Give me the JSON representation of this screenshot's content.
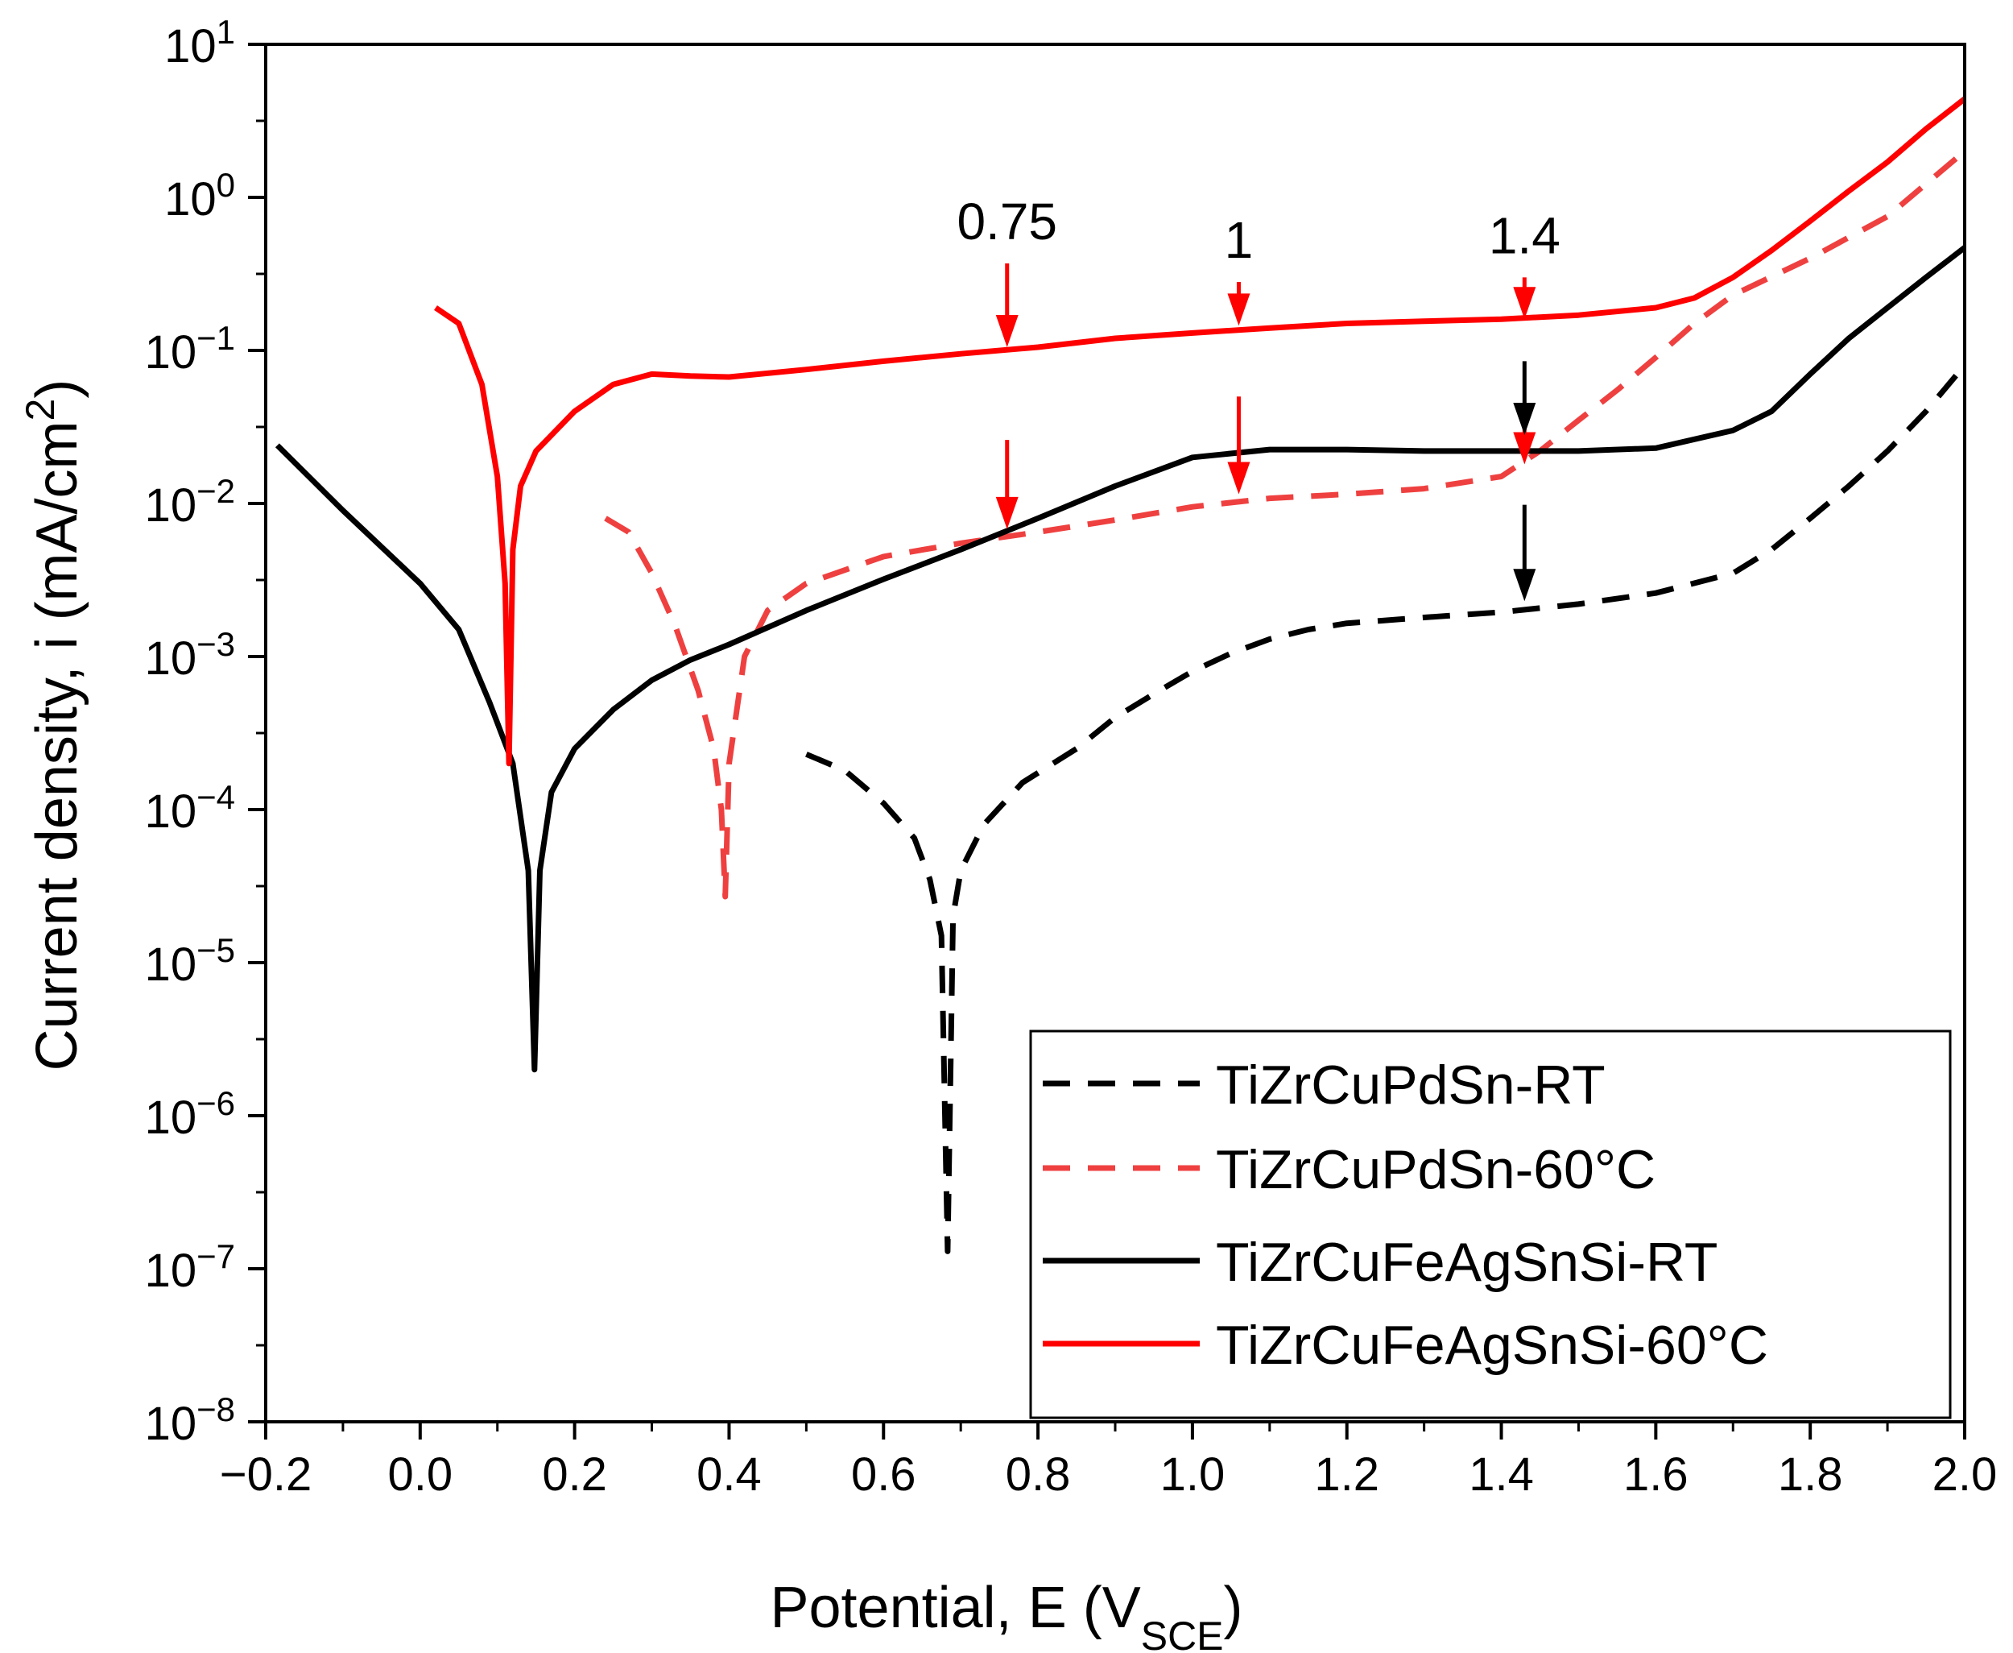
{
  "chart_data": {
    "type": "line",
    "title": "",
    "xlabel": "Potential, E (V",
    "xlabel_sub": "SCE",
    "xlabel_end": ")",
    "ylabel": "Current density, i (mA/cm",
    "ylabel_sup": "2",
    "ylabel_end": ")",
    "xlim": [
      -0.2,
      2.0
    ],
    "ylim_log10": [
      -8,
      1
    ],
    "yscale": "log",
    "x_ticks": [
      {
        "value": -0.2,
        "label": "−0.2"
      },
      {
        "value": 0.0,
        "label": "0.0"
      },
      {
        "value": 0.2,
        "label": "0.2"
      },
      {
        "value": 0.4,
        "label": "0.4"
      },
      {
        "value": 0.6,
        "label": "0.6"
      },
      {
        "value": 0.8,
        "label": "0.8"
      },
      {
        "value": 1.0,
        "label": "1.0"
      },
      {
        "value": 1.2,
        "label": "1.2"
      },
      {
        "value": 1.4,
        "label": "1.4"
      },
      {
        "value": 1.6,
        "label": "1.6"
      },
      {
        "value": 1.8,
        "label": "1.8"
      },
      {
        "value": 2.0,
        "label": "2.0"
      }
    ],
    "y_ticks": [
      {
        "exp": 1,
        "base": "10",
        "sup": "1"
      },
      {
        "exp": 0,
        "base": "10",
        "sup": "0"
      },
      {
        "exp": -1,
        "base": "10",
        "sup": "−1"
      },
      {
        "exp": -2,
        "base": "10",
        "sup": "−2"
      },
      {
        "exp": -3,
        "base": "10",
        "sup": "−3"
      },
      {
        "exp": -4,
        "base": "10",
        "sup": "−4"
      },
      {
        "exp": -5,
        "base": "10",
        "sup": "−5"
      },
      {
        "exp": -6,
        "base": "10",
        "sup": "−6"
      },
      {
        "exp": -7,
        "base": "10",
        "sup": "−7"
      },
      {
        "exp": -8,
        "base": "10",
        "sup": "−8"
      }
    ],
    "grid": false,
    "legend_position": "bottom-right",
    "series": [
      {
        "name": "TiZrCuPdSn-RT",
        "color": "#000000",
        "style": "dashed",
        "points": [
          [
            0.5,
            0.00023
          ],
          [
            0.55,
            0.00018
          ],
          [
            0.6,
            0.00011
          ],
          [
            0.64,
            6.5e-05
          ],
          [
            0.66,
            3.5e-05
          ],
          [
            0.675,
            1.5e-05
          ],
          [
            0.683,
            1.3e-07
          ],
          [
            0.69,
            2e-05
          ],
          [
            0.7,
            4e-05
          ],
          [
            0.73,
            8e-05
          ],
          [
            0.78,
            0.00015
          ],
          [
            0.85,
            0.00025
          ],
          [
            0.9,
            0.0004
          ],
          [
            0.95,
            0.00057
          ],
          [
            1.0,
            0.0008
          ],
          [
            1.05,
            0.00105
          ],
          [
            1.1,
            0.0013
          ],
          [
            1.15,
            0.0015
          ],
          [
            1.2,
            0.00165
          ],
          [
            1.3,
            0.0018
          ],
          [
            1.4,
            0.00195
          ],
          [
            1.5,
            0.0022
          ],
          [
            1.6,
            0.0026
          ],
          [
            1.7,
            0.0035
          ],
          [
            1.75,
            0.005
          ],
          [
            1.8,
            0.008
          ],
          [
            1.85,
            0.013
          ],
          [
            1.9,
            0.022
          ],
          [
            1.95,
            0.04
          ],
          [
            2.0,
            0.08
          ]
        ]
      },
      {
        "name": "TiZrCuPdSn-60°C",
        "color": "#ef4040",
        "style": "dashed",
        "points": [
          [
            0.24,
            0.008
          ],
          [
            0.27,
            0.0065
          ],
          [
            0.3,
            0.0035
          ],
          [
            0.33,
            0.0016
          ],
          [
            0.36,
            0.0006
          ],
          [
            0.38,
            0.00025
          ],
          [
            0.39,
            0.0001
          ],
          [
            0.395,
            2.7e-05
          ],
          [
            0.4,
            0.0002
          ],
          [
            0.42,
            0.001
          ],
          [
            0.45,
            0.002
          ],
          [
            0.5,
            0.003
          ],
          [
            0.6,
            0.0045
          ],
          [
            0.7,
            0.0055
          ],
          [
            0.8,
            0.0065
          ],
          [
            0.9,
            0.0078
          ],
          [
            1.0,
            0.0095
          ],
          [
            1.1,
            0.0108
          ],
          [
            1.2,
            0.0115
          ],
          [
            1.3,
            0.0125
          ],
          [
            1.4,
            0.015
          ],
          [
            1.45,
            0.022
          ],
          [
            1.5,
            0.035
          ],
          [
            1.55,
            0.055
          ],
          [
            1.6,
            0.09
          ],
          [
            1.65,
            0.15
          ],
          [
            1.7,
            0.23
          ],
          [
            1.8,
            0.4
          ],
          [
            1.9,
            0.75
          ],
          [
            2.0,
            2.0
          ]
        ]
      },
      {
        "name": "TiZrCuFeAgSnSi-RT",
        "color": "#000000",
        "style": "solid",
        "points": [
          [
            -0.185,
            0.024
          ],
          [
            -0.1,
            0.009
          ],
          [
            0.0,
            0.003
          ],
          [
            0.05,
            0.0015
          ],
          [
            0.09,
            0.0005
          ],
          [
            0.12,
            0.0002
          ],
          [
            0.14,
            4e-05
          ],
          [
            0.148,
            2e-06
          ],
          [
            0.155,
            4e-05
          ],
          [
            0.17,
            0.00013
          ],
          [
            0.2,
            0.00025
          ],
          [
            0.25,
            0.00045
          ],
          [
            0.3,
            0.0007
          ],
          [
            0.35,
            0.00095
          ],
          [
            0.4,
            0.0012
          ],
          [
            0.5,
            0.002
          ],
          [
            0.6,
            0.0032
          ],
          [
            0.7,
            0.005
          ],
          [
            0.8,
            0.008
          ],
          [
            0.9,
            0.013
          ],
          [
            1.0,
            0.02
          ],
          [
            1.1,
            0.0225
          ],
          [
            1.2,
            0.0225
          ],
          [
            1.3,
            0.022
          ],
          [
            1.4,
            0.022
          ],
          [
            1.5,
            0.022
          ],
          [
            1.6,
            0.023
          ],
          [
            1.7,
            0.03
          ],
          [
            1.75,
            0.04
          ],
          [
            1.8,
            0.07
          ],
          [
            1.85,
            0.12
          ],
          [
            1.9,
            0.19
          ],
          [
            1.95,
            0.3
          ],
          [
            2.0,
            0.47
          ]
        ]
      },
      {
        "name": "TiZrCuFeAgSnSi-60°C",
        "color": "#ff0000",
        "style": "solid",
        "points": [
          [
            0.02,
            0.19
          ],
          [
            0.05,
            0.15
          ],
          [
            0.08,
            0.06
          ],
          [
            0.1,
            0.015
          ],
          [
            0.11,
            0.003
          ],
          [
            0.115,
            0.0002
          ],
          [
            0.12,
            0.005
          ],
          [
            0.13,
            0.013
          ],
          [
            0.15,
            0.022
          ],
          [
            0.2,
            0.04
          ],
          [
            0.25,
            0.06
          ],
          [
            0.3,
            0.07
          ],
          [
            0.35,
            0.068
          ],
          [
            0.4,
            0.067
          ],
          [
            0.5,
            0.075
          ],
          [
            0.6,
            0.085
          ],
          [
            0.7,
            0.095
          ],
          [
            0.8,
            0.105
          ],
          [
            0.9,
            0.12
          ],
          [
            1.0,
            0.13
          ],
          [
            1.1,
            0.14
          ],
          [
            1.2,
            0.15
          ],
          [
            1.3,
            0.155
          ],
          [
            1.4,
            0.16
          ],
          [
            1.5,
            0.17
          ],
          [
            1.6,
            0.19
          ],
          [
            1.65,
            0.22
          ],
          [
            1.7,
            0.3
          ],
          [
            1.75,
            0.45
          ],
          [
            1.8,
            0.7
          ],
          [
            1.85,
            1.1
          ],
          [
            1.9,
            1.7
          ],
          [
            1.95,
            2.8
          ],
          [
            2.0,
            4.4
          ]
        ]
      }
    ],
    "annotations": [
      {
        "label": "0.75",
        "x": 0.76,
        "arrow_from": 0.37,
        "arrow_to": 0.105,
        "color": "#ff0000"
      },
      {
        "label": "1",
        "x": 1.06,
        "arrow_from": 0.28,
        "arrow_to": 0.145,
        "color": "#ff0000"
      },
      {
        "label": "1.4",
        "x": 1.43,
        "arrow_from": 0.3,
        "arrow_to": 0.16,
        "color": "#ff0000"
      }
    ],
    "arrows": [
      {
        "x": 0.76,
        "from": 0.026,
        "to": 0.0068,
        "color": "#ff0000"
      },
      {
        "x": 1.06,
        "from": 0.05,
        "to": 0.0115,
        "color": "#ff0000"
      },
      {
        "x": 1.43,
        "from": 0.038,
        "to": 0.018,
        "color": "#ff0000"
      },
      {
        "x": 1.43,
        "from": 0.085,
        "to": 0.028,
        "color": "#000000"
      },
      {
        "x": 1.43,
        "from": 0.0098,
        "to": 0.0023,
        "color": "#000000"
      }
    ]
  }
}
